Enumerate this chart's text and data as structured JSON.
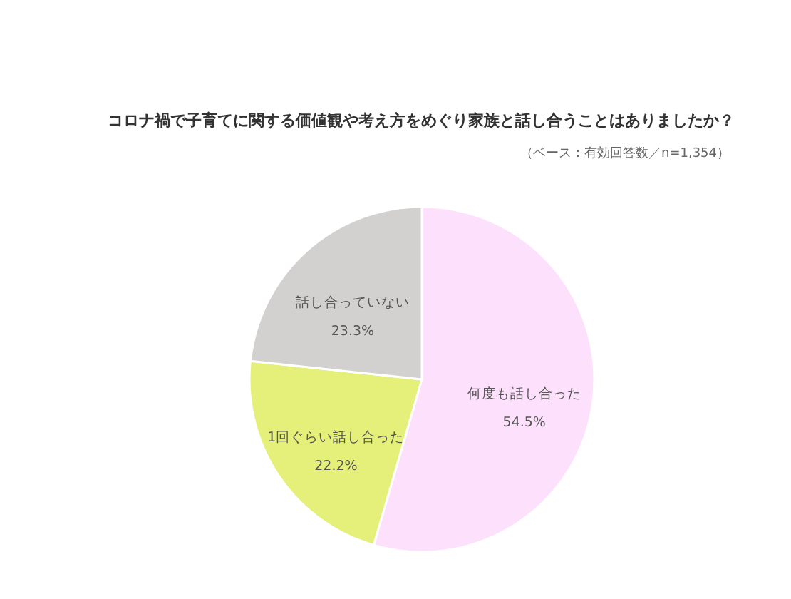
{
  "chart_data": {
    "type": "pie",
    "title": "コロナ禍で子育てに関する価値観や考え方をめぐり家族と話し合うことはありましたか？",
    "subtitle": "（ベース：有効回答数／n=1,354）",
    "categories": [
      "何度も話し合った",
      "1回ぐらい話し合った",
      "話し合っていない"
    ],
    "values": [
      54.5,
      22.2,
      23.3
    ],
    "value_labels": [
      "54.5%",
      "22.2%",
      "23.3%"
    ],
    "colors": [
      "#fde0fb",
      "#e4f07a",
      "#d3d0d0"
    ]
  }
}
